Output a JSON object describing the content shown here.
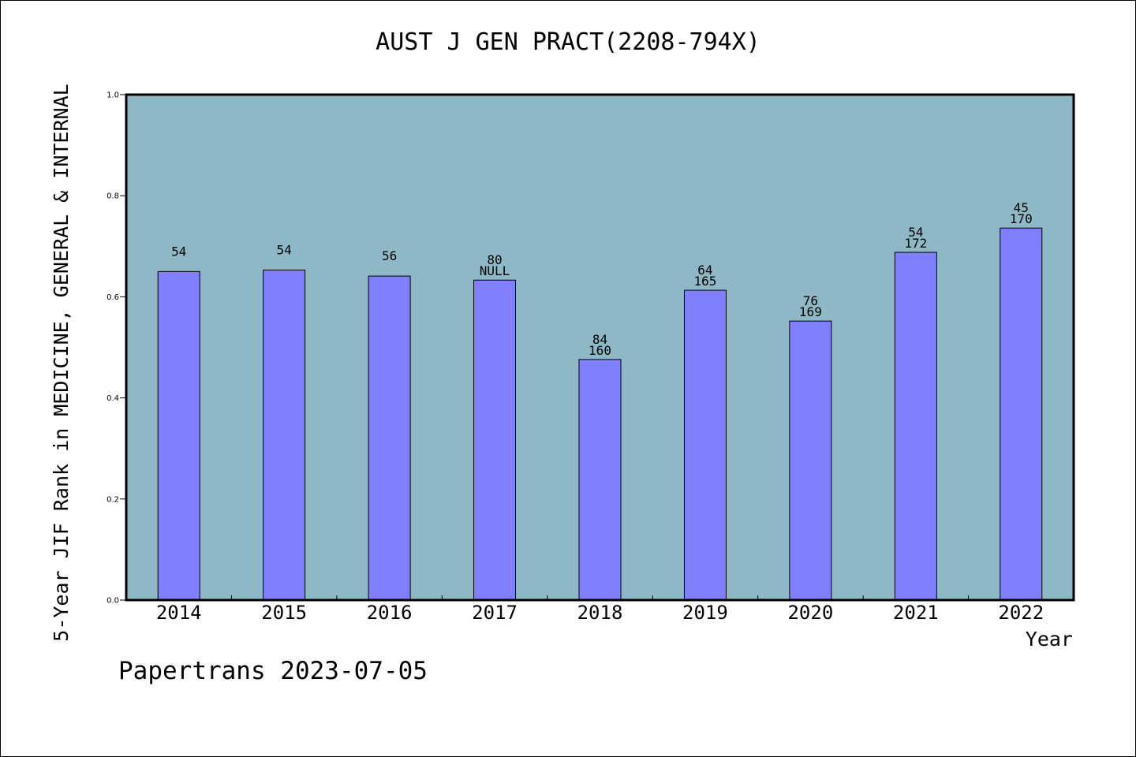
{
  "chart_data": {
    "type": "bar",
    "title": "AUST J GEN PRACT(2208-794X)",
    "xlabel": "Year",
    "ylabel": "5-Year JIF Rank in MEDICINE, GENERAL & INTERNAL",
    "categories": [
      "2014",
      "2015",
      "2016",
      "2017",
      "2018",
      "2019",
      "2020",
      "2021",
      "2022"
    ],
    "values": [
      0.65,
      0.653,
      0.641,
      0.633,
      0.476,
      0.613,
      0.552,
      0.688,
      0.736
    ],
    "bar_labels": [
      [
        "54"
      ],
      [
        "54"
      ],
      [
        "56"
      ],
      [
        "80",
        "NULL"
      ],
      [
        "84",
        "160"
      ],
      [
        "64",
        "165"
      ],
      [
        "76",
        "169"
      ],
      [
        "54",
        "172"
      ],
      [
        "45",
        "170"
      ]
    ],
    "ylim": [
      0,
      1.0
    ],
    "yticks": [
      "0.0",
      "0.2",
      "0.4",
      "0.6",
      "0.8",
      "1.0"
    ],
    "grid": false,
    "colors": {
      "plot_background": "#8fb8c6",
      "bar_fill": "#8080ff",
      "bar_stroke": "#000000"
    }
  },
  "footer_note": "Papertrans 2023-07-05"
}
